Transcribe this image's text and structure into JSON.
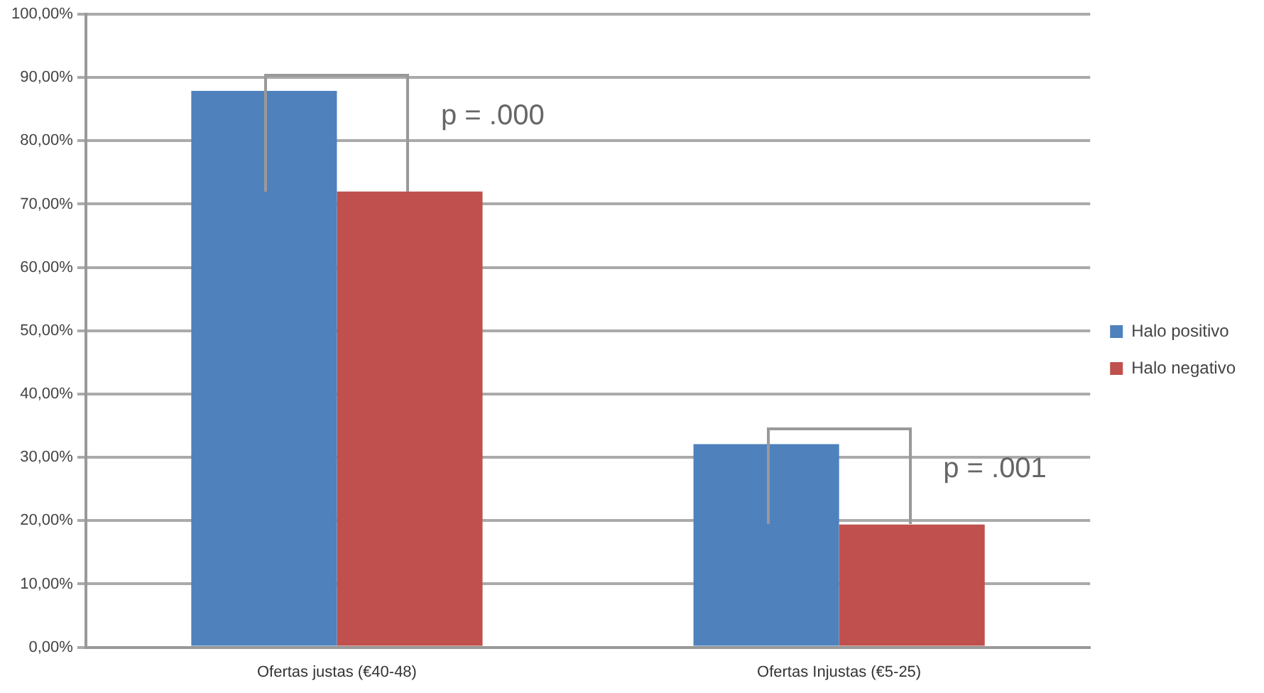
{
  "chart_data": {
    "type": "bar",
    "categories": [
      "Ofertas justas (€40-48)",
      "Ofertas Injustas (€5-25)"
    ],
    "series": [
      {
        "name": "Halo positivo",
        "color": "#4f81bd",
        "values": [
          87.9,
          32.1
        ]
      },
      {
        "name": "Halo negativo",
        "color": "#c0504d",
        "values": [
          72,
          19.4
        ]
      }
    ],
    "ylim": [
      0,
      100
    ],
    "yticks": [
      {
        "value": 0,
        "label": "0,00%"
      },
      {
        "value": 10,
        "label": "10,00%"
      },
      {
        "value": 20,
        "label": "20,00%"
      },
      {
        "value": 30,
        "label": "30,00%"
      },
      {
        "value": 40,
        "label": "40,00%"
      },
      {
        "value": 50,
        "label": "50,00%"
      },
      {
        "value": 60,
        "label": "60,00%"
      },
      {
        "value": 70,
        "label": "70,00%"
      },
      {
        "value": 80,
        "label": "80,00%"
      },
      {
        "value": 90,
        "label": "90,00%"
      },
      {
        "value": 100,
        "label": "100,00%"
      }
    ],
    "grid": "y",
    "legend": "right",
    "annotations": [
      "p = .000",
      "p = .001"
    ]
  }
}
